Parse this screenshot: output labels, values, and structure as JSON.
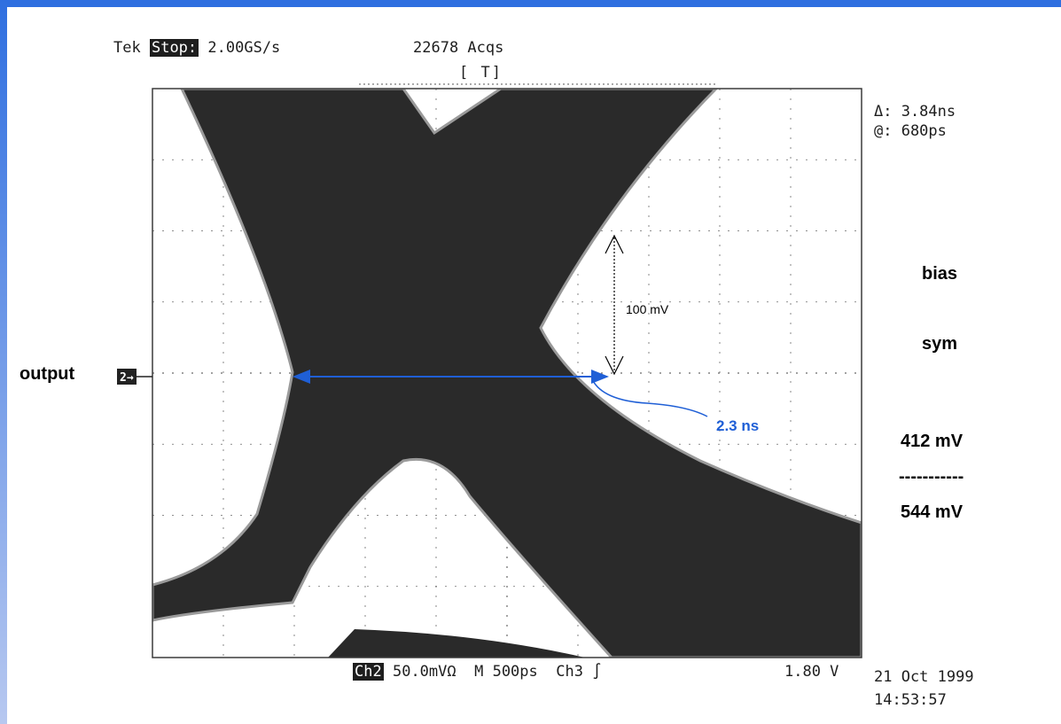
{
  "colors": {
    "frame": "#2f6fe0",
    "ink": "#2a2a2a",
    "grid": "#6a6a6a",
    "annotation": "#1f5fd6"
  },
  "scope": {
    "brand": "Tek",
    "mode": "Stop:",
    "sample_rate": "2.00GS/s",
    "acquisitions": "22678 Acqs",
    "trigger_bar": "[   T]",
    "delta": "Δ: 3.84ns",
    "at": "@: 680ps",
    "channel_marker": "2→",
    "bottom": {
      "channel": "Ch2",
      "scale": "50.0mVΩ",
      "timebase": "M  500ps",
      "trigger_src": "Ch3 ∫",
      "trigger_level": "1.80 V"
    },
    "date": "21 Oct 1999",
    "time": "14:53:57"
  },
  "annotations": {
    "output": "output",
    "voltage_arrow_label": "100 mV",
    "time_arrow_label": "2.3 ns",
    "bias": "bias",
    "sym": "sym",
    "numerator": "412 mV",
    "divider": "-----------",
    "denominator": "544 mV"
  }
}
